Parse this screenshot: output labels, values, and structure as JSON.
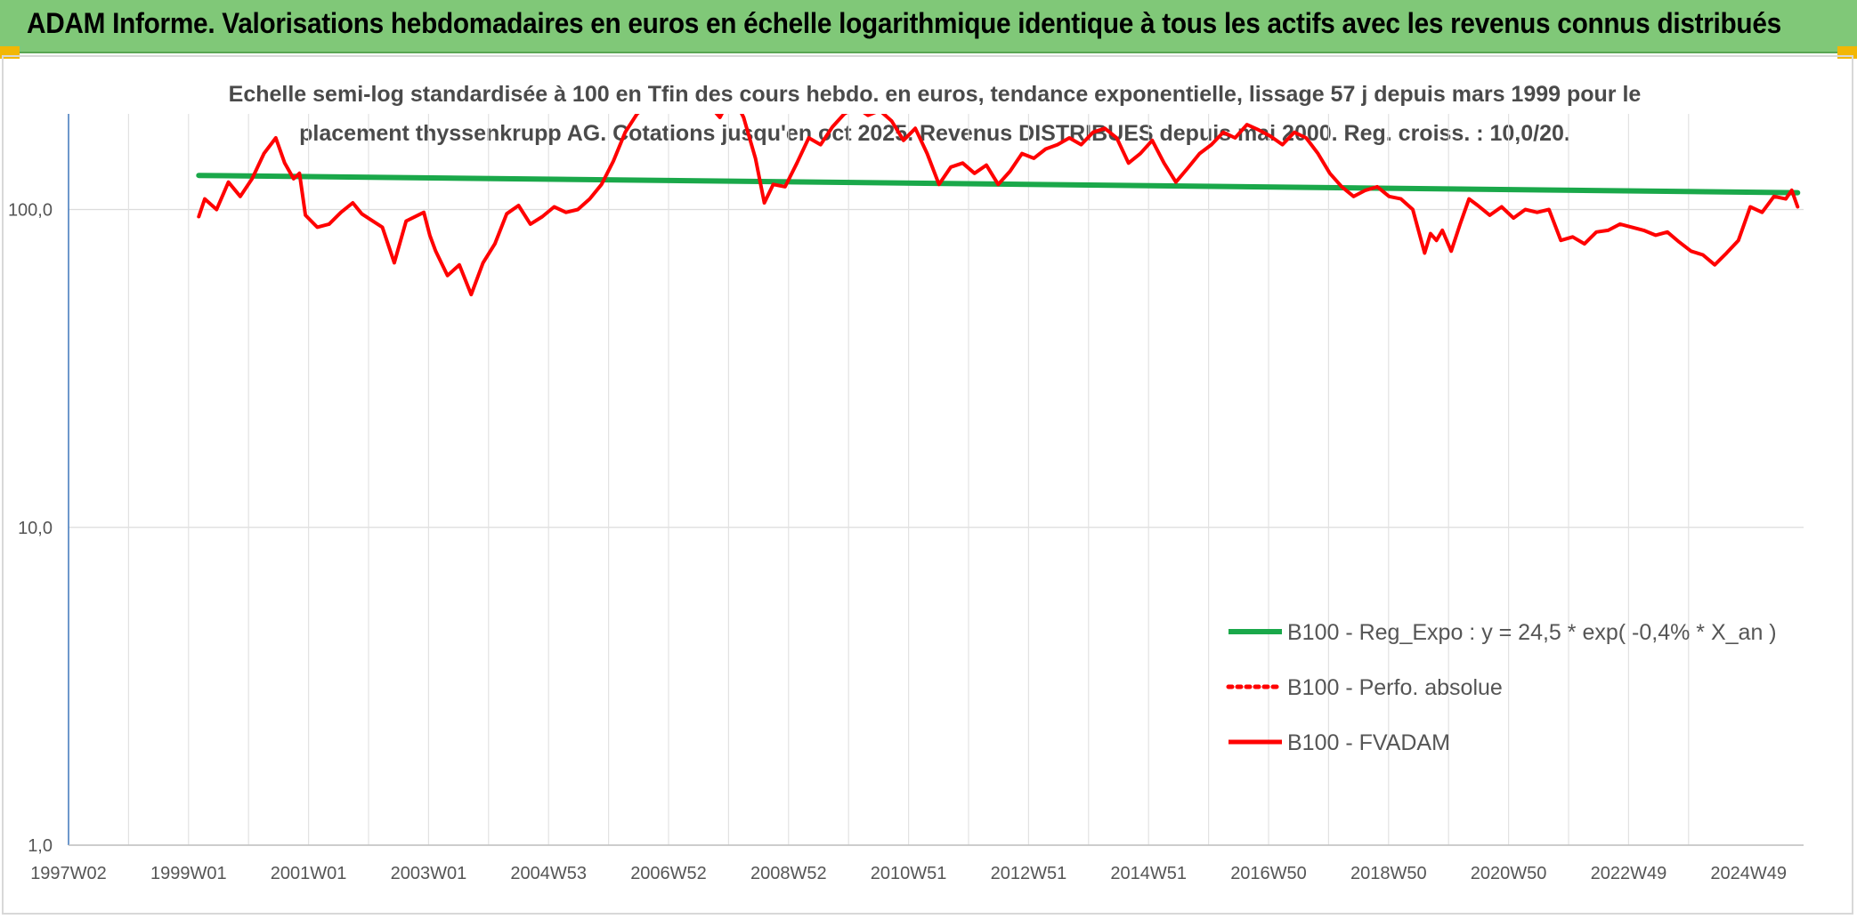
{
  "header": {
    "title": "ADAM Informe. Valorisations hebdomadaires en euros en échelle logarithmique identique à tous les actifs avec les revenus connus distribués"
  },
  "chart_data": {
    "type": "line",
    "title_line1": "Echelle semi-log standardisée à 100 en Tfin des cours hebdo. en euros, tendance exponentielle, lissage 57 j depuis mars 1999 pour le",
    "title_line2": "placement thyssenkrupp AG. Cotations jusqu'en oct 2025. Revenus DISTRIBUES depuis mai 2000. Reg. croiss. : 10,0/20.",
    "y_scale": "log",
    "ylim": [
      1,
      200
    ],
    "y_ticks": [
      "1,0",
      "10,0",
      "100,0"
    ],
    "x_ticks": [
      "1997W02",
      "1999W01",
      "2001W01",
      "2003W01",
      "2004W53",
      "2006W52",
      "2008W52",
      "2010W51",
      "2012W51",
      "2014W51",
      "2016W50",
      "2018W50",
      "2020W50",
      "2022W49",
      "2024W49"
    ],
    "xlim": [
      1997.0,
      2026.3
    ],
    "grid": true,
    "legend_position": "bottom-right",
    "legend": [
      {
        "label": "B100 - Reg_Expo : y = 24,5 * exp( -0,4% *  X_an )",
        "color": "#1aa84a",
        "style": "solid"
      },
      {
        "label": "B100 - Perfo. absolue",
        "color": "#ff0000",
        "style": "dotted"
      },
      {
        "label": "B100 - FVADAM",
        "color": "#ff0000",
        "style": "solid"
      }
    ],
    "series": [
      {
        "name": "B100 - Reg_Expo : y = 24,5 * exp( -0,4% *  X_an )",
        "color": "#1aa84a",
        "x": [
          1999.2,
          2026.2
        ],
        "y": [
          128,
          113
        ]
      },
      {
        "name": "B100 - FVADAM",
        "color": "#ff0000",
        "x": [
          1999.2,
          1999.3,
          1999.5,
          1999.7,
          1999.9,
          2000.1,
          2000.3,
          2000.5,
          2000.65,
          2000.8,
          2000.9,
          2001.0,
          2001.2,
          2001.4,
          2001.6,
          2001.8,
          2001.95,
          2002.1,
          2002.3,
          2002.5,
          2002.7,
          2002.9,
          2003.0,
          2003.1,
          2003.2,
          2003.4,
          2003.6,
          2003.8,
          2004.0,
          2004.2,
          2004.4,
          2004.6,
          2004.8,
          2005.0,
          2005.2,
          2005.4,
          2005.6,
          2005.8,
          2006.0,
          2006.2,
          2006.4,
          2006.6,
          2006.8,
          2007.0,
          2007.2,
          2007.5,
          2007.8,
          2008.0,
          2008.2,
          2008.4,
          2008.6,
          2008.75,
          2008.9,
          2009.1,
          2009.3,
          2009.5,
          2009.7,
          2009.9,
          2010.1,
          2010.3,
          2010.5,
          2010.7,
          2010.9,
          2011.1,
          2011.3,
          2011.5,
          2011.7,
          2011.9,
          2012.1,
          2012.3,
          2012.5,
          2012.7,
          2012.9,
          2013.1,
          2013.3,
          2013.5,
          2013.7,
          2013.9,
          2014.1,
          2014.3,
          2014.5,
          2014.7,
          2014.9,
          2015.1,
          2015.3,
          2015.5,
          2015.7,
          2015.9,
          2016.1,
          2016.3,
          2016.5,
          2016.7,
          2016.9,
          2017.1,
          2017.3,
          2017.5,
          2017.7,
          2017.9,
          2018.1,
          2018.3,
          2018.5,
          2018.7,
          2018.9,
          2019.1,
          2019.3,
          2019.5,
          2019.7,
          2019.9,
          2020.0,
          2020.1,
          2020.2,
          2020.35,
          2020.5,
          2020.65,
          2020.8,
          2021.0,
          2021.2,
          2021.4,
          2021.6,
          2021.8,
          2022.0,
          2022.2,
          2022.4,
          2022.6,
          2022.8,
          2023.0,
          2023.2,
          2023.4,
          2023.6,
          2023.8,
          2024.0,
          2024.2,
          2024.4,
          2024.6,
          2024.8,
          2025.0,
          2025.2,
          2025.4,
          2025.6,
          2025.8,
          2026.0,
          2026.1,
          2026.2
        ],
        "y": [
          95,
          108,
          100,
          122,
          110,
          125,
          150,
          168,
          140,
          125,
          130,
          96,
          88,
          90,
          98,
          105,
          97,
          93,
          88,
          68,
          92,
          96,
          98,
          83,
          74,
          62,
          67,
          54,
          68,
          78,
          97,
          103,
          90,
          95,
          102,
          98,
          100,
          108,
          120,
          142,
          175,
          200,
          215,
          240,
          255,
          240,
          215,
          195,
          230,
          195,
          145,
          105,
          120,
          118,
          140,
          168,
          160,
          182,
          200,
          210,
          198,
          205,
          190,
          165,
          180,
          150,
          120,
          136,
          140,
          130,
          138,
          120,
          132,
          150,
          145,
          155,
          160,
          168,
          160,
          175,
          180,
          168,
          140,
          150,
          165,
          140,
          122,
          135,
          150,
          160,
          175,
          168,
          185,
          178,
          170,
          160,
          175,
          168,
          150,
          130,
          118,
          110,
          115,
          118,
          110,
          108,
          100,
          73,
          84,
          80,
          86,
          74,
          90,
          108,
          103,
          96,
          102,
          94,
          100,
          98,
          100,
          80,
          82,
          78,
          85,
          86,
          90,
          88,
          86,
          83,
          85,
          79,
          74,
          72,
          67,
          73,
          80,
          102,
          98,
          110,
          108,
          115,
          102
        ]
      }
    ]
  }
}
